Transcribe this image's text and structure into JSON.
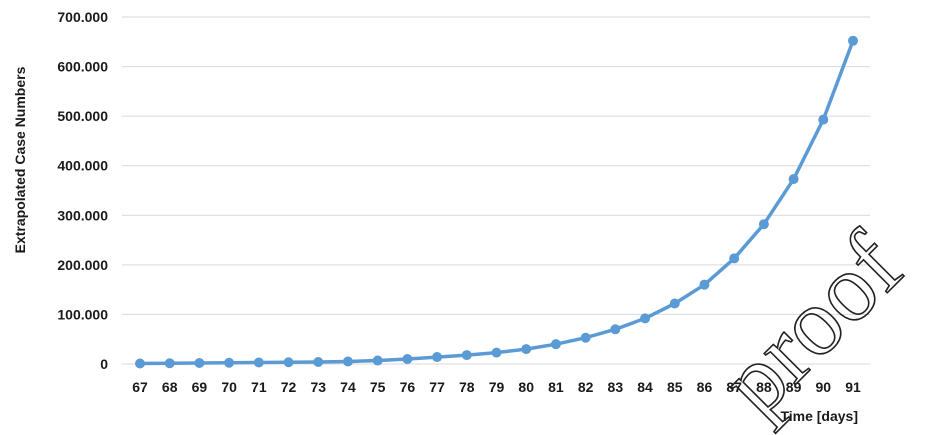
{
  "chart_data": {
    "type": "line",
    "xlabel": "Time [days]",
    "ylabel": "Extrapolated Case Numbers",
    "x": [
      67,
      68,
      69,
      70,
      71,
      72,
      73,
      74,
      75,
      76,
      77,
      78,
      79,
      80,
      81,
      82,
      83,
      84,
      85,
      86,
      87,
      88,
      89,
      90,
      91
    ],
    "y_ticks": [
      0,
      100000,
      200000,
      300000,
      400000,
      500000,
      600000,
      700000
    ],
    "y_tick_labels": [
      "0",
      "100.000",
      "200.000",
      "300.000",
      "400.000",
      "500.000",
      "600.000",
      "700.000"
    ],
    "ylim": [
      0,
      700000
    ],
    "grid": true,
    "series": [
      {
        "values": [
          1000,
          1500,
          2000,
          2500,
          3000,
          3500,
          4000,
          5000,
          7000,
          10000,
          14000,
          18000,
          23000,
          30000,
          40000,
          53000,
          70000,
          92000,
          122000,
          160000,
          213000,
          282000,
          373000,
          493000,
          652000
        ]
      }
    ],
    "colors": {
      "series": "#5b9bd5",
      "grid": "#d9d9d9"
    },
    "watermark": "proof"
  }
}
